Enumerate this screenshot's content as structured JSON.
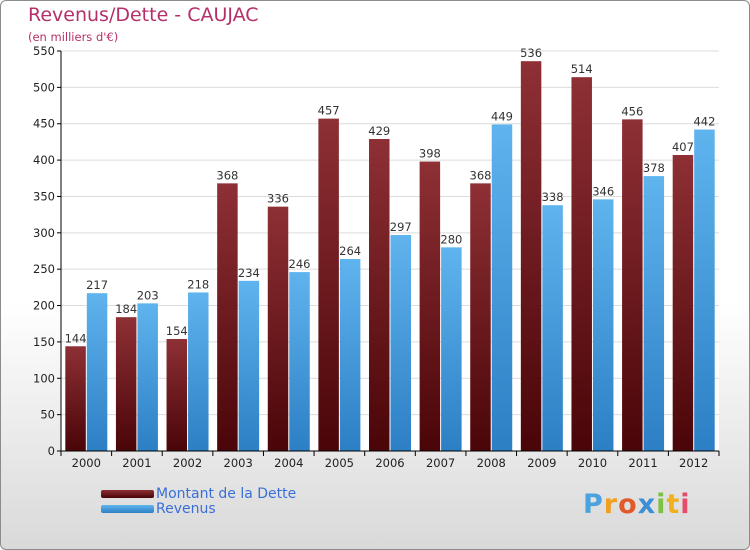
{
  "header": {
    "title": "Revenus/Dette - CAUJAC",
    "subtitle": "(en milliers d'€)"
  },
  "chart_data": {
    "type": "bar",
    "title": "Revenus/Dette - CAUJAC",
    "subtitle": "(en milliers d'€)",
    "categories": [
      "2000",
      "2001",
      "2002",
      "2003",
      "2004",
      "2005",
      "2006",
      "2007",
      "2008",
      "2009",
      "2010",
      "2011",
      "2012"
    ],
    "series": [
      {
        "name": "Montant de la Dette",
        "color": "#7a1b1f",
        "values": [
          144,
          184,
          154,
          368,
          336,
          457,
          429,
          398,
          368,
          536,
          514,
          456,
          407
        ]
      },
      {
        "name": "Revenus",
        "color": "#4ea5e6",
        "values": [
          217,
          203,
          218,
          234,
          246,
          264,
          297,
          280,
          449,
          338,
          346,
          378,
          442
        ]
      }
    ],
    "ylim": [
      0,
      550
    ],
    "yticks": [
      0,
      50,
      100,
      150,
      200,
      250,
      300,
      350,
      400,
      450,
      500,
      550
    ],
    "grid": true,
    "legend_position": "bottom-left"
  },
  "legend": {
    "items": [
      {
        "label": "Montant de la Dette",
        "color": "#6a1014"
      },
      {
        "label": "Revenus",
        "color": "#4ea5e6"
      }
    ]
  },
  "logo": {
    "letters": [
      {
        "ch": "P",
        "color": "#4aa3df"
      },
      {
        "ch": "r",
        "color": "#f0a020"
      },
      {
        "ch": "o",
        "color": "#e05a2a"
      },
      {
        "ch": "x",
        "color": "#3a8fd6"
      },
      {
        "ch": "i",
        "color": "#7cc242"
      },
      {
        "ch": "t",
        "color": "#f0b020"
      },
      {
        "ch": "i",
        "color": "#e84a6a"
      }
    ]
  }
}
